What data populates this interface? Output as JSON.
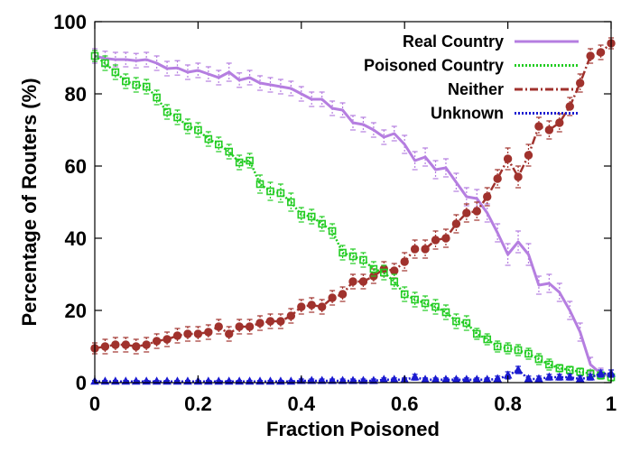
{
  "chart_data": {
    "type": "line",
    "title": "",
    "xlabel": "Fraction Poisoned",
    "ylabel": "Percentage of Routers (%)",
    "xlim": [
      0,
      1
    ],
    "ylim": [
      0,
      100
    ],
    "xticks": [
      0,
      0.2,
      0.4,
      0.6,
      0.8,
      1
    ],
    "xtick_labels": [
      "0",
      "0.2",
      "0.4",
      "0.6",
      "0.8",
      "1"
    ],
    "yticks": [
      0,
      20,
      40,
      60,
      80,
      100
    ],
    "ytick_labels": [
      "0",
      "20",
      "40",
      "60",
      "80",
      "100"
    ],
    "legend_position": "top-right",
    "grid": false,
    "error_bars": true,
    "x": [
      0,
      0.02,
      0.04,
      0.06,
      0.08,
      0.1,
      0.12,
      0.14,
      0.16,
      0.18,
      0.2,
      0.22,
      0.24,
      0.26,
      0.28,
      0.3,
      0.32,
      0.34,
      0.36,
      0.38,
      0.4,
      0.42,
      0.44,
      0.46,
      0.48,
      0.5,
      0.52,
      0.54,
      0.56,
      0.58,
      0.6,
      0.62,
      0.64,
      0.66,
      0.68,
      0.7,
      0.72,
      0.74,
      0.76,
      0.78,
      0.8,
      0.82,
      0.84,
      0.86,
      0.88,
      0.9,
      0.92,
      0.94,
      0.96,
      0.98,
      1
    ],
    "series": [
      {
        "name": "Real Country",
        "color": "#b57ee0",
        "marker": "none",
        "dash": "solid",
        "values": [
          90.5,
          89.8,
          89.5,
          89.5,
          89.2,
          89.5,
          88.5,
          87.0,
          87.2,
          86.0,
          86.5,
          85.5,
          84.5,
          86.0,
          83.8,
          84.5,
          83.0,
          82.5,
          82.0,
          81.5,
          80.0,
          78.5,
          78.5,
          76.0,
          75.5,
          72.0,
          71.5,
          70.0,
          68.0,
          69.0,
          66.0,
          61.5,
          62.5,
          59.0,
          59.5,
          55.5,
          51.5,
          51.0,
          47.0,
          41.5,
          35.5,
          39.0,
          35.5,
          27.0,
          27.5,
          25.0,
          20.0,
          14.0,
          5.0,
          2.5,
          2.0
        ],
        "errors": [
          2.0,
          2.0,
          2.0,
          2.0,
          2.0,
          2.0,
          2.0,
          2.0,
          2.0,
          2.0,
          2.0,
          2.0,
          2.0,
          2.5,
          2.0,
          2.0,
          2.0,
          2.0,
          2.0,
          2.0,
          2.0,
          2.0,
          2.0,
          2.0,
          2.0,
          2.0,
          2.0,
          2.0,
          2.0,
          2.0,
          2.5,
          2.5,
          2.5,
          2.5,
          2.5,
          2.5,
          2.5,
          2.5,
          2.5,
          2.5,
          3.0,
          3.0,
          3.0,
          2.5,
          2.5,
          2.5,
          2.5,
          2.5,
          2.0,
          1.5,
          1.5
        ]
      },
      {
        "name": "Poisoned Country",
        "color": "#22cc22",
        "marker": "square",
        "dash": "dotted",
        "values": [
          90.5,
          88.5,
          86.0,
          83.5,
          82.5,
          82.0,
          79.0,
          75.0,
          73.5,
          71.0,
          70.0,
          67.5,
          66.0,
          64.0,
          61.0,
          61.5,
          55.0,
          53.0,
          52.5,
          50.0,
          46.5,
          46.0,
          44.0,
          42.0,
          36.0,
          35.0,
          34.0,
          31.5,
          30.5,
          28.0,
          24.5,
          23.0,
          22.0,
          21.0,
          19.5,
          17.0,
          16.5,
          13.5,
          12.0,
          10.0,
          9.5,
          9.0,
          8.0,
          6.5,
          5.0,
          4.0,
          3.5,
          3.0,
          2.5,
          2.0,
          1.5
        ],
        "errors": [
          1.5,
          2.0,
          2.0,
          2.0,
          2.0,
          2.0,
          2.0,
          2.0,
          2.0,
          2.0,
          2.0,
          2.0,
          2.0,
          2.0,
          2.0,
          2.0,
          2.5,
          2.5,
          2.5,
          2.5,
          2.0,
          2.0,
          2.0,
          2.0,
          2.0,
          2.0,
          2.0,
          2.0,
          2.0,
          2.0,
          2.0,
          2.0,
          2.0,
          2.0,
          2.0,
          2.0,
          2.0,
          1.5,
          1.5,
          1.5,
          1.5,
          1.5,
          1.5,
          1.5,
          1.5,
          1.0,
          1.0,
          1.0,
          1.0,
          1.0,
          1.0
        ]
      },
      {
        "name": "Neither",
        "color": "#a0322d",
        "marker": "circle",
        "dash": "dash-dot",
        "values": [
          9.5,
          10.0,
          10.5,
          10.5,
          10.0,
          10.5,
          11.5,
          12.0,
          13.0,
          13.5,
          13.5,
          14.0,
          15.5,
          13.5,
          15.5,
          15.5,
          16.5,
          17.0,
          17.0,
          18.5,
          21.0,
          21.5,
          21.0,
          23.5,
          24.5,
          28.0,
          28.0,
          29.5,
          31.5,
          31.0,
          33.5,
          37.0,
          37.0,
          39.5,
          40.0,
          44.0,
          47.0,
          47.5,
          51.5,
          56.5,
          62.0,
          57.0,
          63.0,
          71.0,
          70.0,
          72.0,
          76.5,
          83.0,
          90.5,
          91.5,
          94.0
        ],
        "errors": [
          1.5,
          2.0,
          2.0,
          2.0,
          2.0,
          2.0,
          2.0,
          2.0,
          2.0,
          2.0,
          2.0,
          2.0,
          2.0,
          2.0,
          2.0,
          2.0,
          2.0,
          2.0,
          2.0,
          2.0,
          2.0,
          2.0,
          2.0,
          2.0,
          2.0,
          2.0,
          2.0,
          2.0,
          2.0,
          2.0,
          2.5,
          2.5,
          2.5,
          2.5,
          2.5,
          2.5,
          2.5,
          2.5,
          2.5,
          2.5,
          3.0,
          3.0,
          3.0,
          2.5,
          2.5,
          2.5,
          2.5,
          2.5,
          2.0,
          2.0,
          1.5
        ]
      },
      {
        "name": "Unknown",
        "color": "#1a1ad0",
        "marker": "triangle",
        "dash": "dotted",
        "values": [
          0.3,
          0.3,
          0.3,
          0.3,
          0.3,
          0.3,
          0.3,
          0.3,
          0.3,
          0.3,
          0.3,
          0.3,
          0.3,
          0.3,
          0.3,
          0.3,
          0.3,
          0.3,
          0.3,
          0.3,
          0.5,
          0.5,
          0.5,
          0.5,
          0.5,
          0.5,
          0.5,
          0.5,
          0.8,
          0.8,
          0.8,
          1.5,
          0.8,
          0.8,
          0.8,
          0.8,
          0.8,
          0.8,
          0.8,
          1.0,
          2.0,
          3.5,
          1.0,
          1.0,
          1.5,
          1.5,
          1.5,
          1.0,
          1.5,
          2.5,
          2.5
        ],
        "errors": [
          0.3,
          0.3,
          0.3,
          0.3,
          0.3,
          0.3,
          0.3,
          0.3,
          0.3,
          0.3,
          0.3,
          0.3,
          0.3,
          0.3,
          0.3,
          0.3,
          0.3,
          0.3,
          0.3,
          0.3,
          0.5,
          0.5,
          0.5,
          0.5,
          0.5,
          0.5,
          0.5,
          0.5,
          0.5,
          0.5,
          0.5,
          0.8,
          0.5,
          0.5,
          0.5,
          0.5,
          0.5,
          0.5,
          0.5,
          0.8,
          1.0,
          1.0,
          0.8,
          0.8,
          0.8,
          0.8,
          0.8,
          0.8,
          0.8,
          1.0,
          1.0
        ]
      }
    ]
  }
}
